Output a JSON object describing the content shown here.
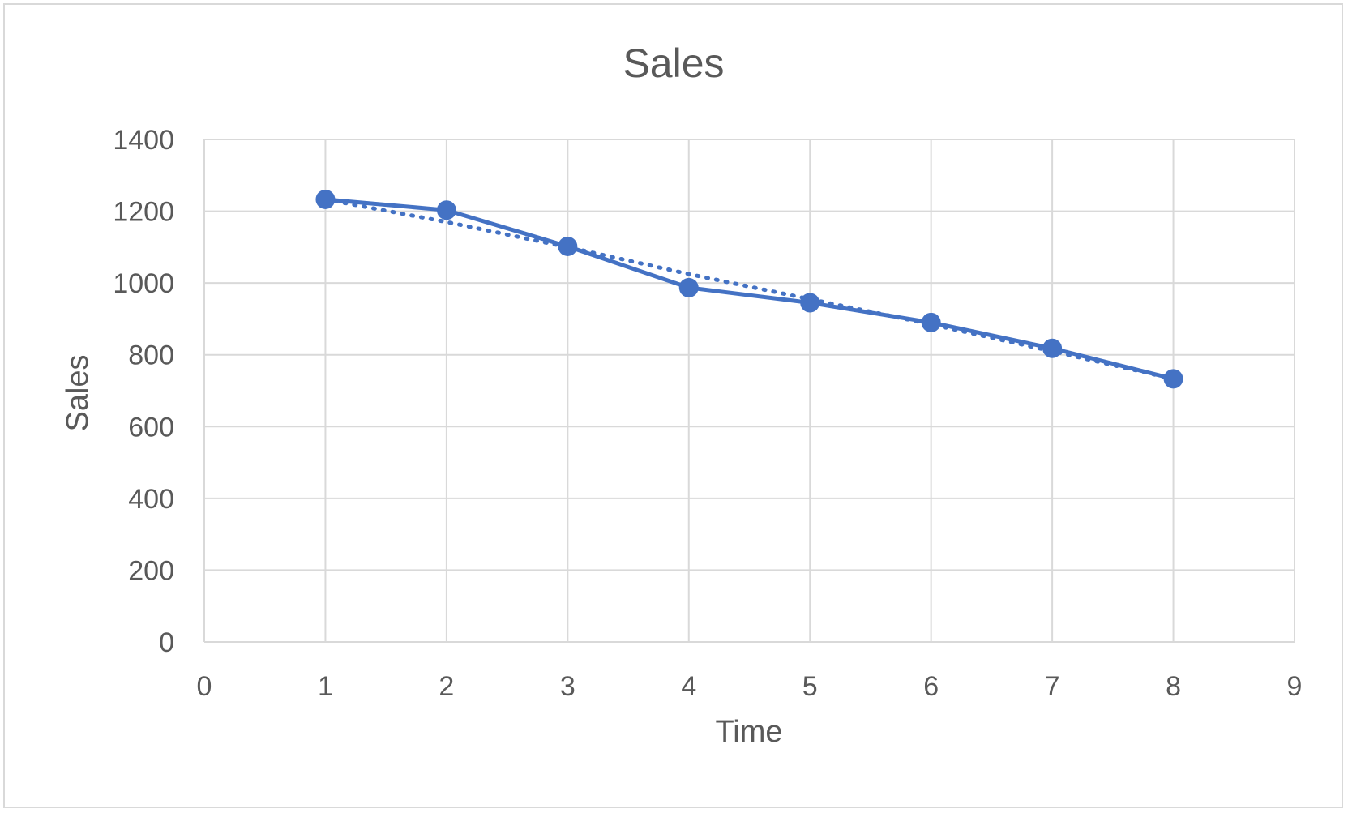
{
  "chart_data": {
    "type": "scatter",
    "title": "Sales",
    "xlabel": "Time",
    "ylabel": "Sales",
    "xlim": [
      0,
      9
    ],
    "ylim": [
      0,
      1400
    ],
    "x_ticks": [
      "0",
      "1",
      "2",
      "3",
      "4",
      "5",
      "6",
      "7",
      "8",
      "9"
    ],
    "y_ticks": [
      "0",
      "200",
      "400",
      "600",
      "800",
      "1000",
      "1200",
      "1400"
    ],
    "grid": true,
    "legend": "none",
    "series": [
      {
        "x": [
          1,
          2,
          3,
          4,
          5,
          6,
          7,
          8
        ],
        "y": [
          1233,
          1203,
          1102,
          987,
          945,
          890,
          818,
          733
        ],
        "style": "solid line with markers"
      },
      {
        "x": [
          1,
          2,
          3,
          4,
          5,
          6,
          7,
          8
        ],
        "y": [
          1233,
          1170,
          1100,
          1025,
          955,
          885,
          810,
          733
        ],
        "style": "dotted trendline"
      }
    ],
    "colors": {
      "series": "#4472C4",
      "grid": "#d9d9d9",
      "text": "#595959"
    }
  }
}
